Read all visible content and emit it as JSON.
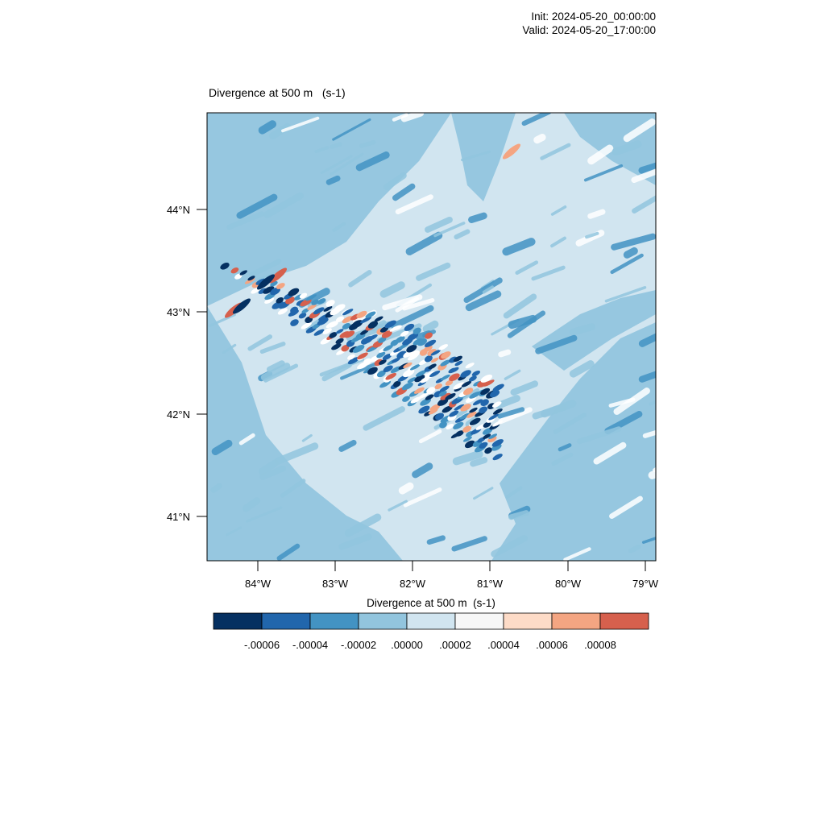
{
  "header": {
    "init": "Init: 2024-05-20_00:00:00",
    "valid": "Valid: 2024-05-20_17:00:00"
  },
  "plot": {
    "title": "Divergence at 500 m   (s-1)",
    "lat_ticks": [
      "44°N",
      "43°N",
      "42°N",
      "41°N"
    ],
    "lon_ticks": [
      "84°W",
      "83°W",
      "82°W",
      "81°W",
      "80°W",
      "79°W"
    ]
  },
  "colorbar": {
    "title": "Divergence at 500 m  (s-1)",
    "labels": [
      "-.00006",
      "-.00004",
      "-.00002",
      ".00000",
      ".00002",
      ".00004",
      ".00006",
      ".00008"
    ],
    "colors": [
      "#053061",
      "#2166ac",
      "#4393c3",
      "#92c5de",
      "#d1e5f0",
      "#f7f7f7",
      "#fddbc7",
      "#f4a582",
      "#d6604d"
    ]
  },
  "map_style": {
    "background": "#d1e5f0",
    "mid": "#92c5de",
    "dark": "#4393c3",
    "darker": "#2166ac",
    "darkest": "#053061",
    "white": "#f7f7f7",
    "pink": "#fddbc7",
    "orange": "#f4a582",
    "red": "#d6604d"
  }
}
